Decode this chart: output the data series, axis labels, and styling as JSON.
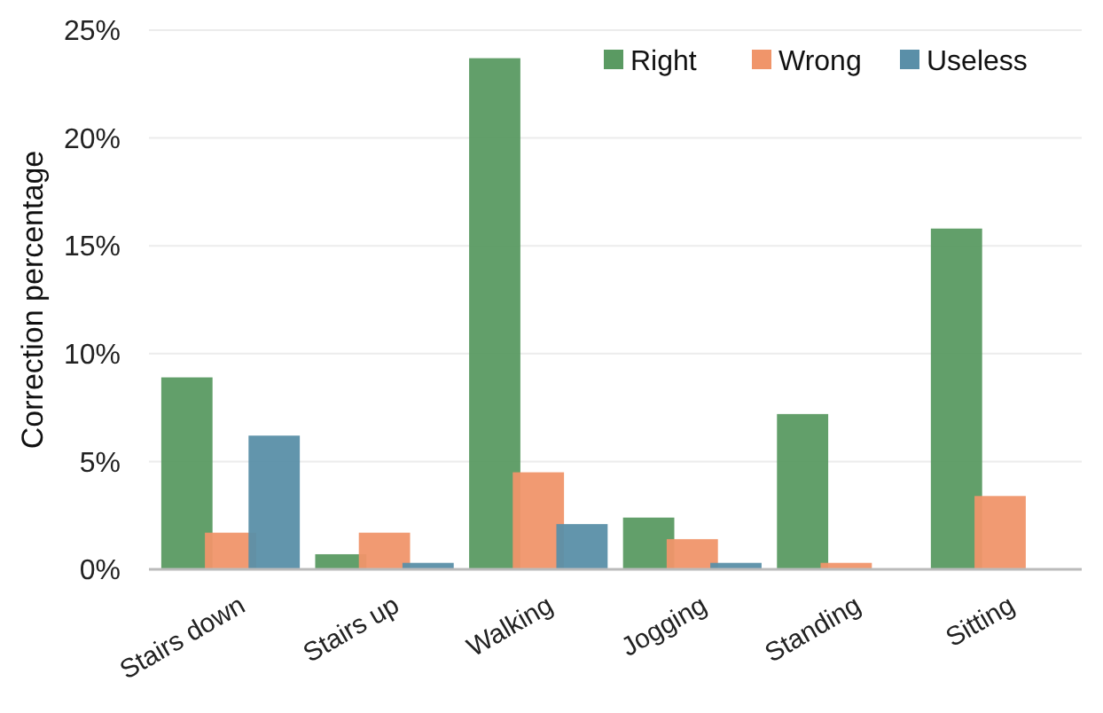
{
  "chart_data": {
    "type": "bar",
    "ylabel": "Correction percentage",
    "categories": [
      "Stairs down",
      "Stairs up",
      "Walking",
      "Jogging",
      "Standing",
      "Sitting"
    ],
    "series": [
      {
        "name": "Right",
        "color": "#5a9a62",
        "values": [
          8.9,
          0.7,
          23.7,
          2.4,
          7.2,
          15.8
        ]
      },
      {
        "name": "Wrong",
        "color": "#f0956a",
        "values": [
          1.7,
          1.7,
          4.5,
          1.4,
          0.3,
          3.4
        ]
      },
      {
        "name": "Useless",
        "color": "#5a8fa8",
        "values": [
          6.2,
          0.3,
          2.1,
          0.3,
          0,
          0
        ]
      }
    ],
    "ylim": [
      0,
      25
    ],
    "yticks": [
      {
        "value": 0,
        "label": "0%"
      },
      {
        "value": 5,
        "label": "5%"
      },
      {
        "value": 10,
        "label": "10%"
      },
      {
        "value": 15,
        "label": "15%"
      },
      {
        "value": 20,
        "label": "20%"
      },
      {
        "value": 25,
        "label": "25%"
      }
    ],
    "grid": "y",
    "legend": "top right"
  }
}
